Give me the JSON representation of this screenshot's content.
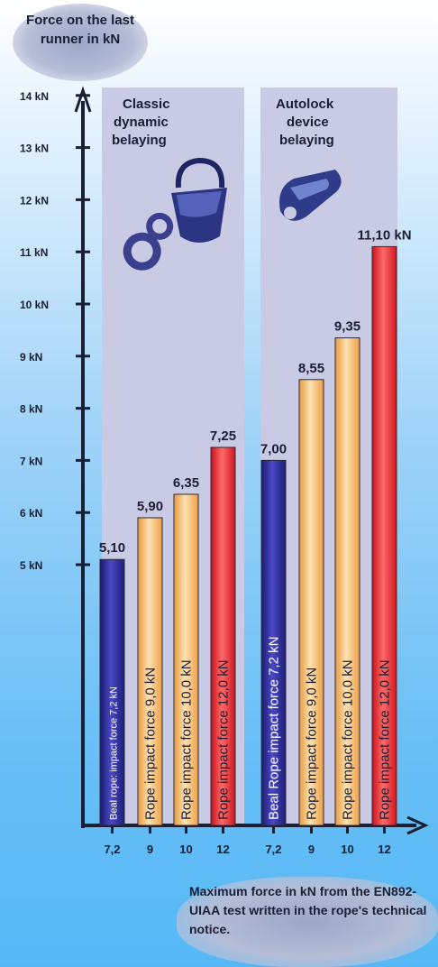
{
  "chart_data": {
    "type": "bar",
    "ylabel": "Force on the last runner in kN",
    "y_ticks": [
      {
        "value": 5,
        "label": "5 kN"
      },
      {
        "value": 6,
        "label": "6 kN"
      },
      {
        "value": 7,
        "label": "7 kN"
      },
      {
        "value": 8,
        "label": "8 kN"
      },
      {
        "value": 9,
        "label": "9 kN"
      },
      {
        "value": 10,
        "label": "10 kN"
      },
      {
        "value": 11,
        "label": "11 kN"
      },
      {
        "value": 12,
        "label": "12 kN"
      },
      {
        "value": 13,
        "label": "13 kN"
      },
      {
        "value": 14,
        "label": "14 kN"
      }
    ],
    "groups": [
      {
        "name": "Classic dynamic belaying",
        "bars": [
          {
            "category": "7,2",
            "value": 5.1,
            "value_label": "5,10",
            "bar_label": "Beal rope: impact force 7,2 kN",
            "color": "blue"
          },
          {
            "category": "9",
            "value": 5.9,
            "value_label": "5,90",
            "bar_label": "Rope impact force 9,0 kN",
            "color": "orange"
          },
          {
            "category": "10",
            "value": 6.35,
            "value_label": "6,35",
            "bar_label": "Rope impact force 10,0 kN",
            "color": "orange"
          },
          {
            "category": "12",
            "value": 7.25,
            "value_label": "7,25",
            "bar_label": "Rope impact force 12,0 kN",
            "color": "red"
          }
        ]
      },
      {
        "name": "Autolock device belaying",
        "bars": [
          {
            "category": "7,2",
            "value": 7.0,
            "value_label": "7,00",
            "bar_label": "Beal  Rope impact force 7,2 kN",
            "color": "blue"
          },
          {
            "category": "9",
            "value": 8.55,
            "value_label": "8,55",
            "bar_label": "Rope impact force 9,0 kN",
            "color": "orange"
          },
          {
            "category": "10",
            "value": 9.35,
            "value_label": "9,35",
            "bar_label": "Rope impact force 10,0 kN",
            "color": "orange"
          },
          {
            "category": "12",
            "value": 11.1,
            "value_label": "11,10 kN",
            "bar_label": "Rope impact force 12,0 kN",
            "color": "red"
          }
        ]
      }
    ],
    "footnote": "Maximum force in kN from the EN892-UIAA test written in the rope's technical notice."
  },
  "colors": {
    "blue": "#2c2b98",
    "orange": "#f6b562",
    "red": "#e3232c",
    "panel": "#c9cae4"
  },
  "icons": [
    "figure-eight-descender-icon",
    "tube-belay-device-icon",
    "autolock-belay-device-icon"
  ]
}
